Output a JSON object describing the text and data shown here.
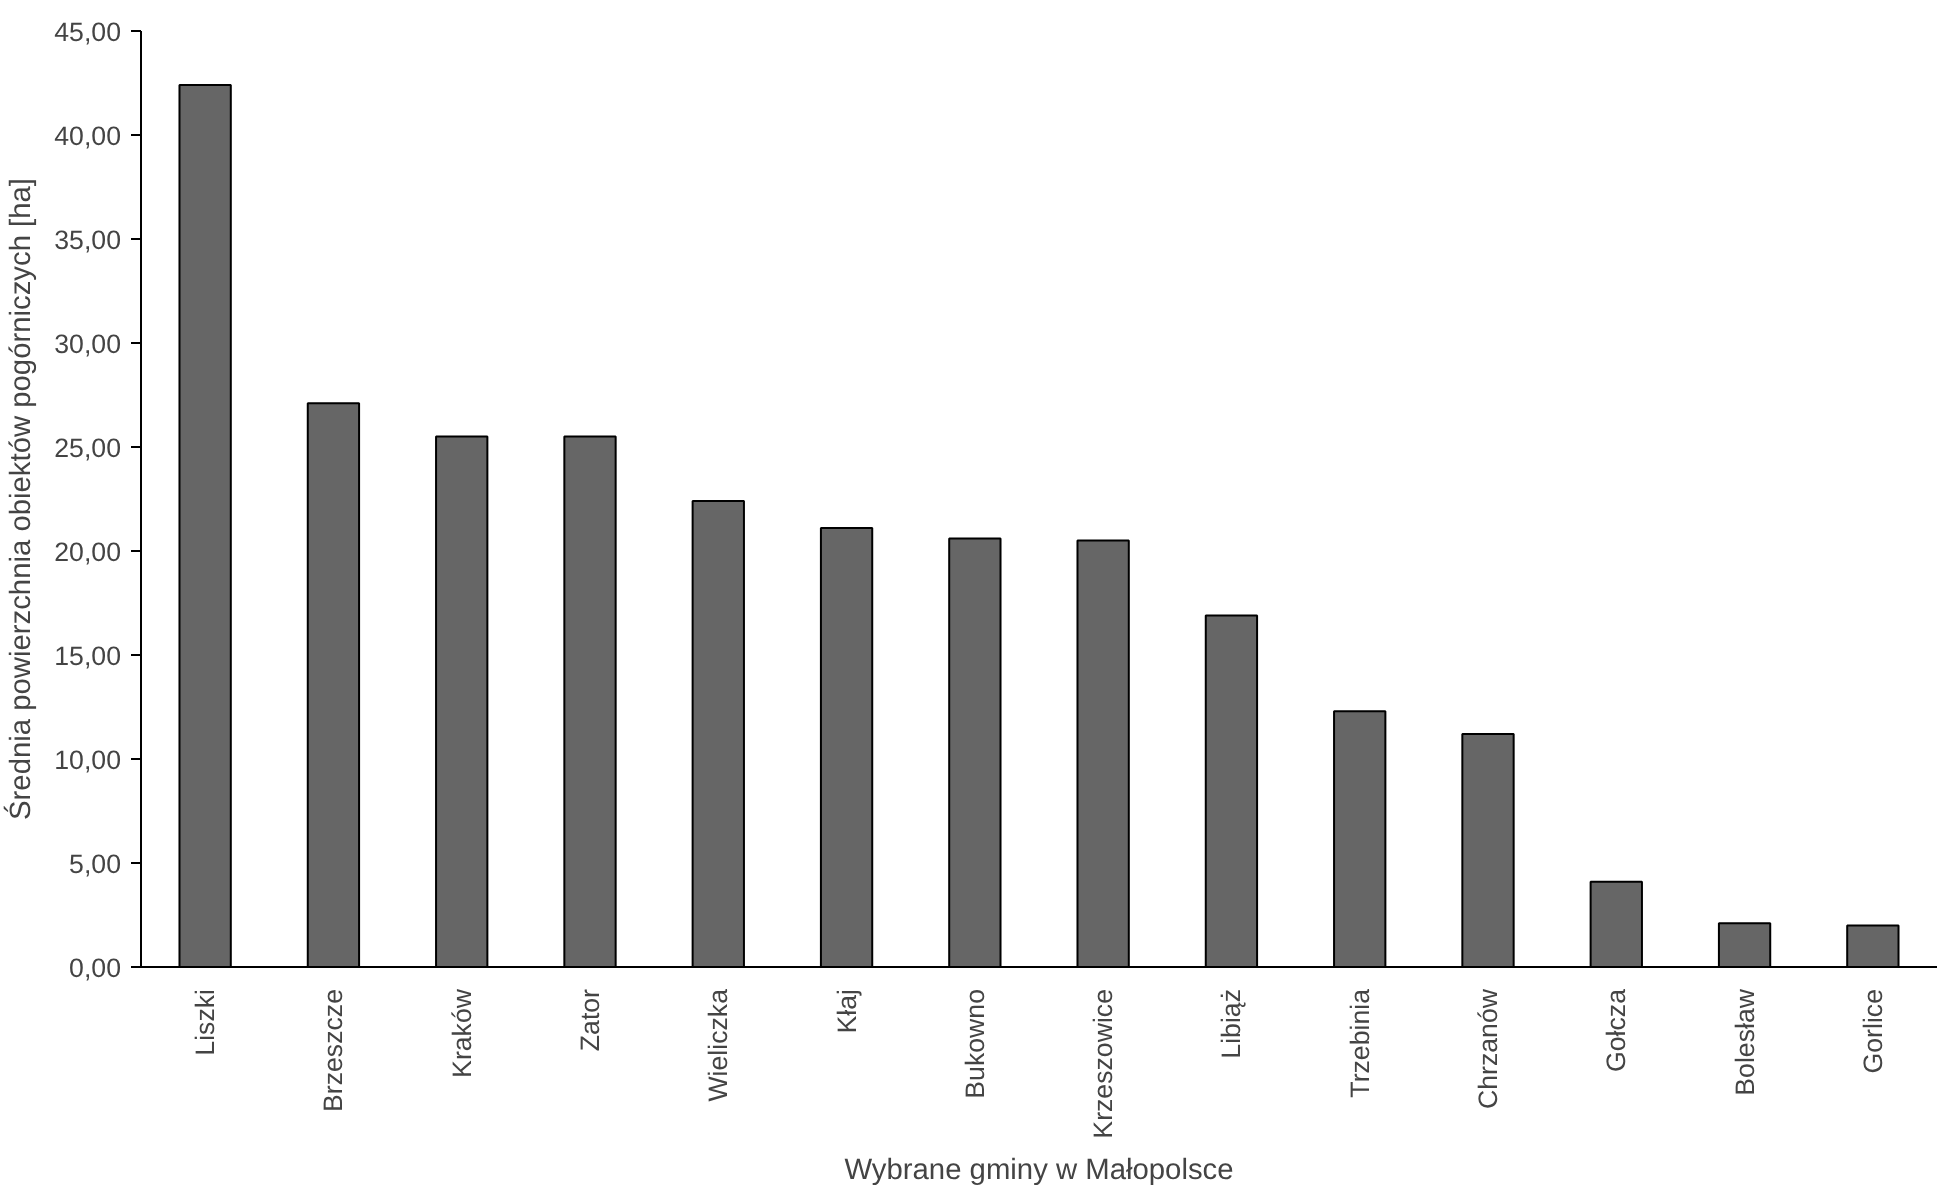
{
  "chart_data": {
    "type": "bar",
    "xlabel": "Wybrane gminy w Małopolsce",
    "ylabel": "Średnia powierzchnia obiektów pogórniczych [ha]",
    "categories": [
      "Liszki",
      "Brzeszcze",
      "Kraków",
      "Zator",
      "Wieliczka",
      "Kłaj",
      "Bukowno",
      "Krzeszowice",
      "Libiąż",
      "Trzebinia",
      "Chrzanów",
      "Gołcza",
      "Bolesław",
      "Gorlice"
    ],
    "values": [
      42.4,
      27.1,
      25.5,
      25.5,
      22.4,
      21.1,
      20.6,
      20.5,
      16.9,
      12.3,
      11.2,
      4.1,
      2.1,
      2.0
    ],
    "color": "#666666",
    "ylim": [
      0,
      45
    ],
    "yticks": [
      {
        "value": 0,
        "label": "0,00"
      },
      {
        "value": 5,
        "label": "5,00"
      },
      {
        "value": 10,
        "label": "10,00"
      },
      {
        "value": 15,
        "label": "15,00"
      },
      {
        "value": 20,
        "label": "20,00"
      },
      {
        "value": 25,
        "label": "25,00"
      },
      {
        "value": 30,
        "label": "30,00"
      },
      {
        "value": 35,
        "label": "35,00"
      },
      {
        "value": 40,
        "label": "40,00"
      },
      {
        "value": 45,
        "label": "45,00"
      }
    ],
    "grid": false
  }
}
